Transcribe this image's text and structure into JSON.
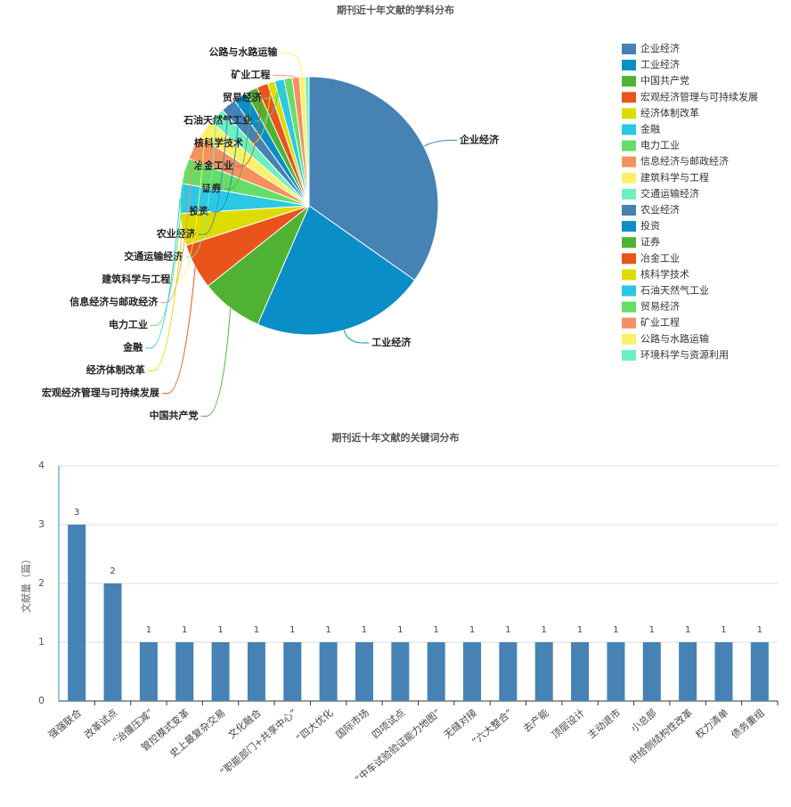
{
  "chart_data": [
    {
      "type": "pie",
      "title": "期刊近十年文献的学科分布",
      "categories": [
        "企业经济",
        "工业经济",
        "中国共产党",
        "宏观经济管理与可持续发展",
        "经济体制改革",
        "金融",
        "电力工业",
        "信息经济与邮政经济",
        "建筑科学与工程",
        "交通运输经济",
        "农业经济",
        "投资",
        "证券",
        "冶金工业",
        "核科学技术",
        "石油天然气工业",
        "贸易经济",
        "矿业工程",
        "公路与水路运输",
        "环境科学与资源利用"
      ],
      "values": [
        34.7,
        21.7,
        7.8,
        5.7,
        4.0,
        3.7,
        3.2,
        3.0,
        2.3,
        2.0,
        1.9,
        1.7,
        1.5,
        1.4,
        0.9,
        1.2,
        1.0,
        0.9,
        0.7,
        0.5
      ],
      "colors": [
        "#4682b4",
        "#0a8ec8",
        "#4fb233",
        "#e8541a",
        "#dcdc00",
        "#2bc8e6",
        "#66dd66",
        "#f49160",
        "#fdf069",
        "#6cf0c0",
        "#4682b4",
        "#0a8ec8",
        "#4fb233",
        "#e8541a",
        "#dcdc00",
        "#2bc8e6",
        "#66dd66",
        "#f49160",
        "#fdf069",
        "#6cf0c0"
      ],
      "legend": "right"
    },
    {
      "type": "bar",
      "title": "期刊近十年文献的关键词分布",
      "ylabel": "文献量（篇）",
      "categories": [
        "强强联合",
        "改革试点",
        "“治僵压减”",
        "管控模式变革",
        "史上最复杂交易",
        "文化融合",
        "“职能部门+共享中心”",
        "“四大优化",
        "国际市场",
        "四项试点",
        "“中车试验验证能力地图”",
        "无缝对接",
        "“六大整合”",
        "去产能",
        "顶层设计",
        "主动退市",
        "小总部",
        "供给侧结构性改革",
        "权力清单",
        "债务重组"
      ],
      "values": [
        3,
        2,
        1,
        1,
        1,
        1,
        1,
        1,
        1,
        1,
        1,
        1,
        1,
        1,
        1,
        1,
        1,
        1,
        1,
        1
      ],
      "color": "#4682b4",
      "ylim": [
        0,
        4
      ],
      "yticks": [
        0,
        1,
        2,
        3,
        4
      ],
      "grid": true
    }
  ]
}
